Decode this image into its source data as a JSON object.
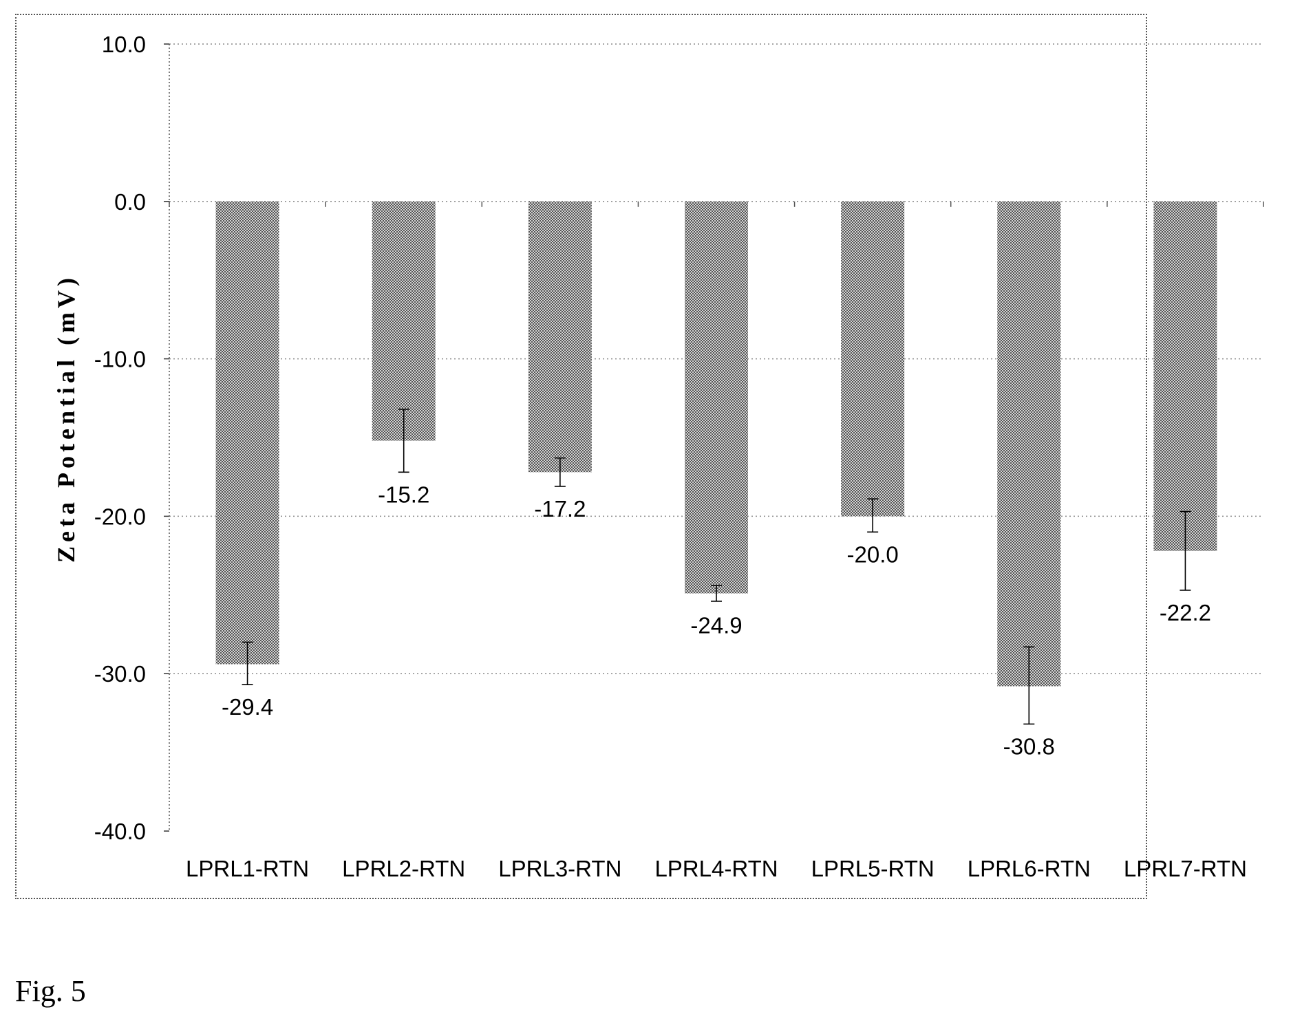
{
  "figure": {
    "caption": "Fig. 5"
  },
  "chart_data": {
    "type": "bar",
    "title": "",
    "xlabel": "",
    "ylabel": "Zeta Potential (mV)",
    "ylim": [
      -40,
      10
    ],
    "yticks": [
      10,
      0,
      -10,
      -20,
      -30,
      -40
    ],
    "ytick_labels": [
      "10.0",
      "0.0",
      "-10.0",
      "-20.0",
      "-30.0",
      "-40.0"
    ],
    "grid": "horizontal dotted",
    "legend": "none",
    "categories": [
      "LPRL1-RTN",
      "LPRL2-RTN",
      "LPRL3-RTN",
      "LPRL4-RTN",
      "LPRL5-RTN",
      "LPRL6-RTN",
      "LPRL7-RTN"
    ],
    "values": [
      -29.4,
      -15.2,
      -17.2,
      -24.9,
      -20.0,
      -30.8,
      -22.2
    ],
    "data_labels": [
      "-29.4",
      "-15.2",
      "-17.2",
      "-24.9",
      "-20.0",
      "-30.8",
      "-22.2"
    ],
    "error_bars": [
      {
        "low": -30.7,
        "high": -28.0
      },
      {
        "low": -17.2,
        "high": -13.2
      },
      {
        "low": -18.1,
        "high": -16.3
      },
      {
        "low": -25.4,
        "high": -24.4
      },
      {
        "low": -21.0,
        "high": -18.9
      },
      {
        "low": -33.2,
        "high": -28.3
      },
      {
        "low": -24.7,
        "high": -19.7
      }
    ],
    "bar_color": "#9a9a9a",
    "error_bar_color": "#000000",
    "grid_color": "#888888"
  }
}
